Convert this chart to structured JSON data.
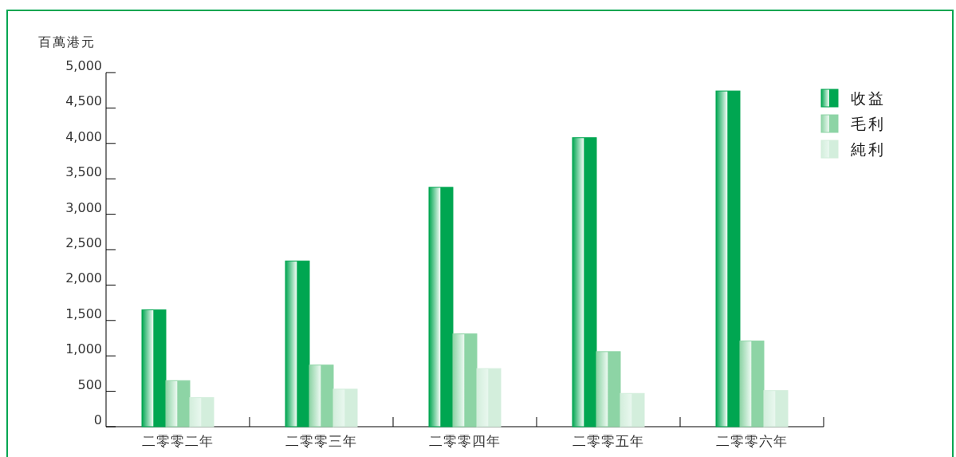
{
  "chart_data": {
    "type": "bar",
    "ylabel": "百萬港元",
    "categories": [
      "二零零二年",
      "二零零三年",
      "二零零四年",
      "二零零五年",
      "二零零六年"
    ],
    "series": [
      {
        "name": "收益",
        "color": "#00a651",
        "values": [
          1650,
          2340,
          3380,
          4080,
          4740
        ]
      },
      {
        "name": "毛利",
        "color": "#8dd4a5",
        "values": [
          650,
          870,
          1310,
          1060,
          1210
        ]
      },
      {
        "name": "純利",
        "color": "#d3eedc",
        "values": [
          410,
          530,
          820,
          470,
          510
        ]
      }
    ],
    "ylim": [
      0,
      5000
    ],
    "yticks": [
      0,
      500,
      {
        "value": 1000,
        "label": "1,000"
      },
      {
        "value": 1500,
        "label": "1,500"
      },
      {
        "value": 2000,
        "label": "2,000"
      },
      {
        "value": 2500,
        "label": "2,500"
      },
      {
        "value": 3000,
        "label": "3,000"
      },
      {
        "value": 3500,
        "label": "3,500"
      },
      {
        "value": 4000,
        "label": "4,000"
      },
      {
        "value": 4500,
        "label": "4,500"
      },
      {
        "value": 5000,
        "label": "5,000"
      }
    ],
    "legend": "top right",
    "grid": false
  }
}
